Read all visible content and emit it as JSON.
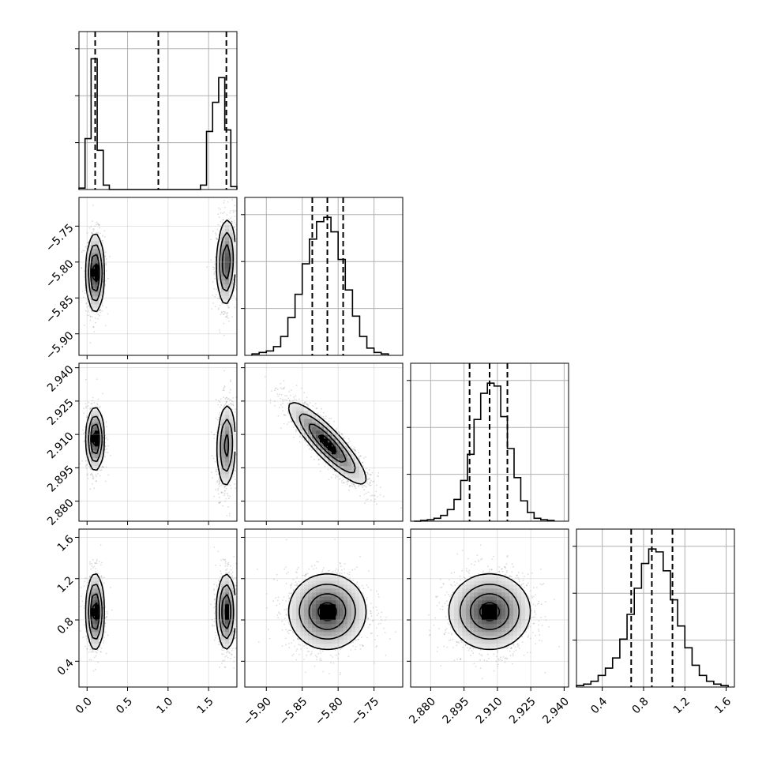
{
  "chart_data": {
    "type": "corner",
    "grid": true,
    "parameters": [
      {
        "range": [
          -0.1,
          1.85
        ],
        "xticks": [
          "0.0",
          "0.5",
          "1.0",
          "1.5"
        ],
        "xtick_values": [
          0.0,
          0.5,
          1.0,
          1.5
        ],
        "yticks": [],
        "ytick_values": []
      },
      {
        "range": [
          -5.93,
          -5.71
        ],
        "xticks": [
          "-5.90",
          "-5.85",
          "-5.80",
          "-5.75"
        ],
        "xtick_values": [
          -5.9,
          -5.85,
          -5.8,
          -5.75
        ],
        "yticks": [
          "-5.75",
          "-5.80",
          "-5.85",
          "-5.90"
        ],
        "ytick_values": [
          -5.75,
          -5.8,
          -5.85,
          -5.9
        ]
      },
      {
        "range": [
          2.871,
          2.942
        ],
        "xticks": [
          "2.880",
          "2.895",
          "2.910",
          "2.925",
          "2.940"
        ],
        "xtick_values": [
          2.88,
          2.895,
          2.91,
          2.925,
          2.94
        ],
        "yticks": [
          "2.940",
          "2.925",
          "2.910",
          "2.895",
          "2.880"
        ],
        "ytick_values": [
          2.94,
          2.925,
          2.91,
          2.895,
          2.88
        ]
      },
      {
        "range": [
          0.15,
          1.68
        ],
        "xticks": [
          "0.4",
          "0.8",
          "1.2",
          "1.6"
        ],
        "xtick_values": [
          0.4,
          0.8,
          1.2,
          1.6
        ],
        "yticks": [
          "1.6",
          "1.2",
          "0.8",
          "0.4"
        ],
        "ytick_values": [
          1.6,
          1.2,
          0.8,
          0.4
        ]
      }
    ],
    "histograms": [
      {
        "bin_edges": [
          -0.1,
          -0.025,
          0.05,
          0.125,
          0.2,
          0.275,
          0.35,
          1.4,
          1.475,
          1.55,
          1.625,
          1.7,
          1.775,
          1.85
        ],
        "counts": [
          0.01,
          0.35,
          0.9,
          0.27,
          0.03,
          0.0,
          0.0,
          0.03,
          0.4,
          0.6,
          0.77,
          0.41,
          0.02
        ],
        "ymax": 1.0,
        "quantiles": [
          0.1,
          0.88,
          1.72
        ]
      },
      {
        "bin_edges": [
          -5.92,
          -5.91,
          -5.9,
          -5.89,
          -5.88,
          -5.87,
          -5.86,
          -5.85,
          -5.84,
          -5.83,
          -5.82,
          -5.81,
          -5.8,
          -5.79,
          -5.78,
          -5.77,
          -5.76,
          -5.75,
          -5.74,
          -5.73
        ],
        "counts": [
          0.01,
          0.02,
          0.03,
          0.06,
          0.13,
          0.26,
          0.42,
          0.63,
          0.8,
          0.92,
          0.95,
          0.85,
          0.66,
          0.45,
          0.27,
          0.13,
          0.05,
          0.02,
          0.01
        ],
        "ymax": 1.0,
        "quantiles": [
          -5.836,
          -5.815,
          -5.793
        ]
      },
      {
        "bin_edges": [
          2.8725,
          2.8755,
          2.8785,
          2.8815,
          2.8845,
          2.8875,
          2.8905,
          2.8935,
          2.8965,
          2.8995,
          2.9025,
          2.9055,
          2.9085,
          2.9115,
          2.9145,
          2.9175,
          2.9205,
          2.9235,
          2.9265,
          2.9295,
          2.9325,
          2.9355
        ],
        "counts": [
          0.0,
          0.005,
          0.01,
          0.02,
          0.04,
          0.08,
          0.15,
          0.28,
          0.46,
          0.7,
          0.88,
          0.95,
          0.93,
          0.72,
          0.5,
          0.3,
          0.14,
          0.06,
          0.02,
          0.01,
          0.005
        ],
        "ymax": 1.0,
        "quantiles": [
          2.8975,
          2.9065,
          2.9145
        ]
      },
      {
        "bin_edges": [
          0.15,
          0.22,
          0.29,
          0.36,
          0.43,
          0.5,
          0.57,
          0.64,
          0.71,
          0.78,
          0.85,
          0.92,
          0.99,
          1.06,
          1.13,
          1.2,
          1.27,
          1.34,
          1.41,
          1.48,
          1.55,
          1.62
        ],
        "counts": [
          0.01,
          0.02,
          0.04,
          0.08,
          0.13,
          0.2,
          0.33,
          0.5,
          0.68,
          0.85,
          0.95,
          0.93,
          0.8,
          0.6,
          0.42,
          0.27,
          0.15,
          0.08,
          0.04,
          0.02,
          0.01
        ],
        "ymax": 1.0,
        "quantiles": [
          0.68,
          0.88,
          1.08
        ]
      }
    ],
    "pairs": [
      {
        "row": 1,
        "col": 0,
        "modes": [
          {
            "mx": 0.1,
            "my": -5.815,
            "sx": 0.05,
            "sy": 0.025,
            "rho": 0.0,
            "w": 0.5
          },
          {
            "mx": 1.72,
            "my": -5.8,
            "sx": 0.055,
            "sy": 0.028,
            "rho": 0.1,
            "w": 0.5
          }
        ]
      },
      {
        "row": 2,
        "col": 0,
        "modes": [
          {
            "mx": 0.1,
            "my": 2.908,
            "sx": 0.05,
            "sy": 0.0065,
            "rho": 0.0,
            "w": 0.5
          },
          {
            "mx": 1.72,
            "my": 2.905,
            "sx": 0.055,
            "sy": 0.009,
            "rho": 0.1,
            "w": 0.5
          }
        ]
      },
      {
        "row": 2,
        "col": 1,
        "modes": [
          {
            "mx": -5.815,
            "my": 2.906,
            "sx": 0.025,
            "sy": 0.0085,
            "rho": -0.88,
            "w": 1.0
          }
        ]
      },
      {
        "row": 3,
        "col": 0,
        "modes": [
          {
            "mx": 0.1,
            "my": 0.88,
            "sx": 0.05,
            "sy": 0.17,
            "rho": 0.0,
            "w": 0.5
          },
          {
            "mx": 1.72,
            "my": 0.88,
            "sx": 0.055,
            "sy": 0.17,
            "rho": 0.0,
            "w": 0.5
          }
        ]
      },
      {
        "row": 3,
        "col": 1,
        "modes": [
          {
            "mx": -5.815,
            "my": 0.88,
            "sx": 0.025,
            "sy": 0.17,
            "rho": 0.0,
            "w": 1.0
          }
        ]
      },
      {
        "row": 3,
        "col": 2,
        "modes": [
          {
            "mx": 2.9065,
            "my": 0.88,
            "sx": 0.0085,
            "sy": 0.17,
            "rho": 0.0,
            "w": 1.0
          }
        ]
      }
    ]
  }
}
